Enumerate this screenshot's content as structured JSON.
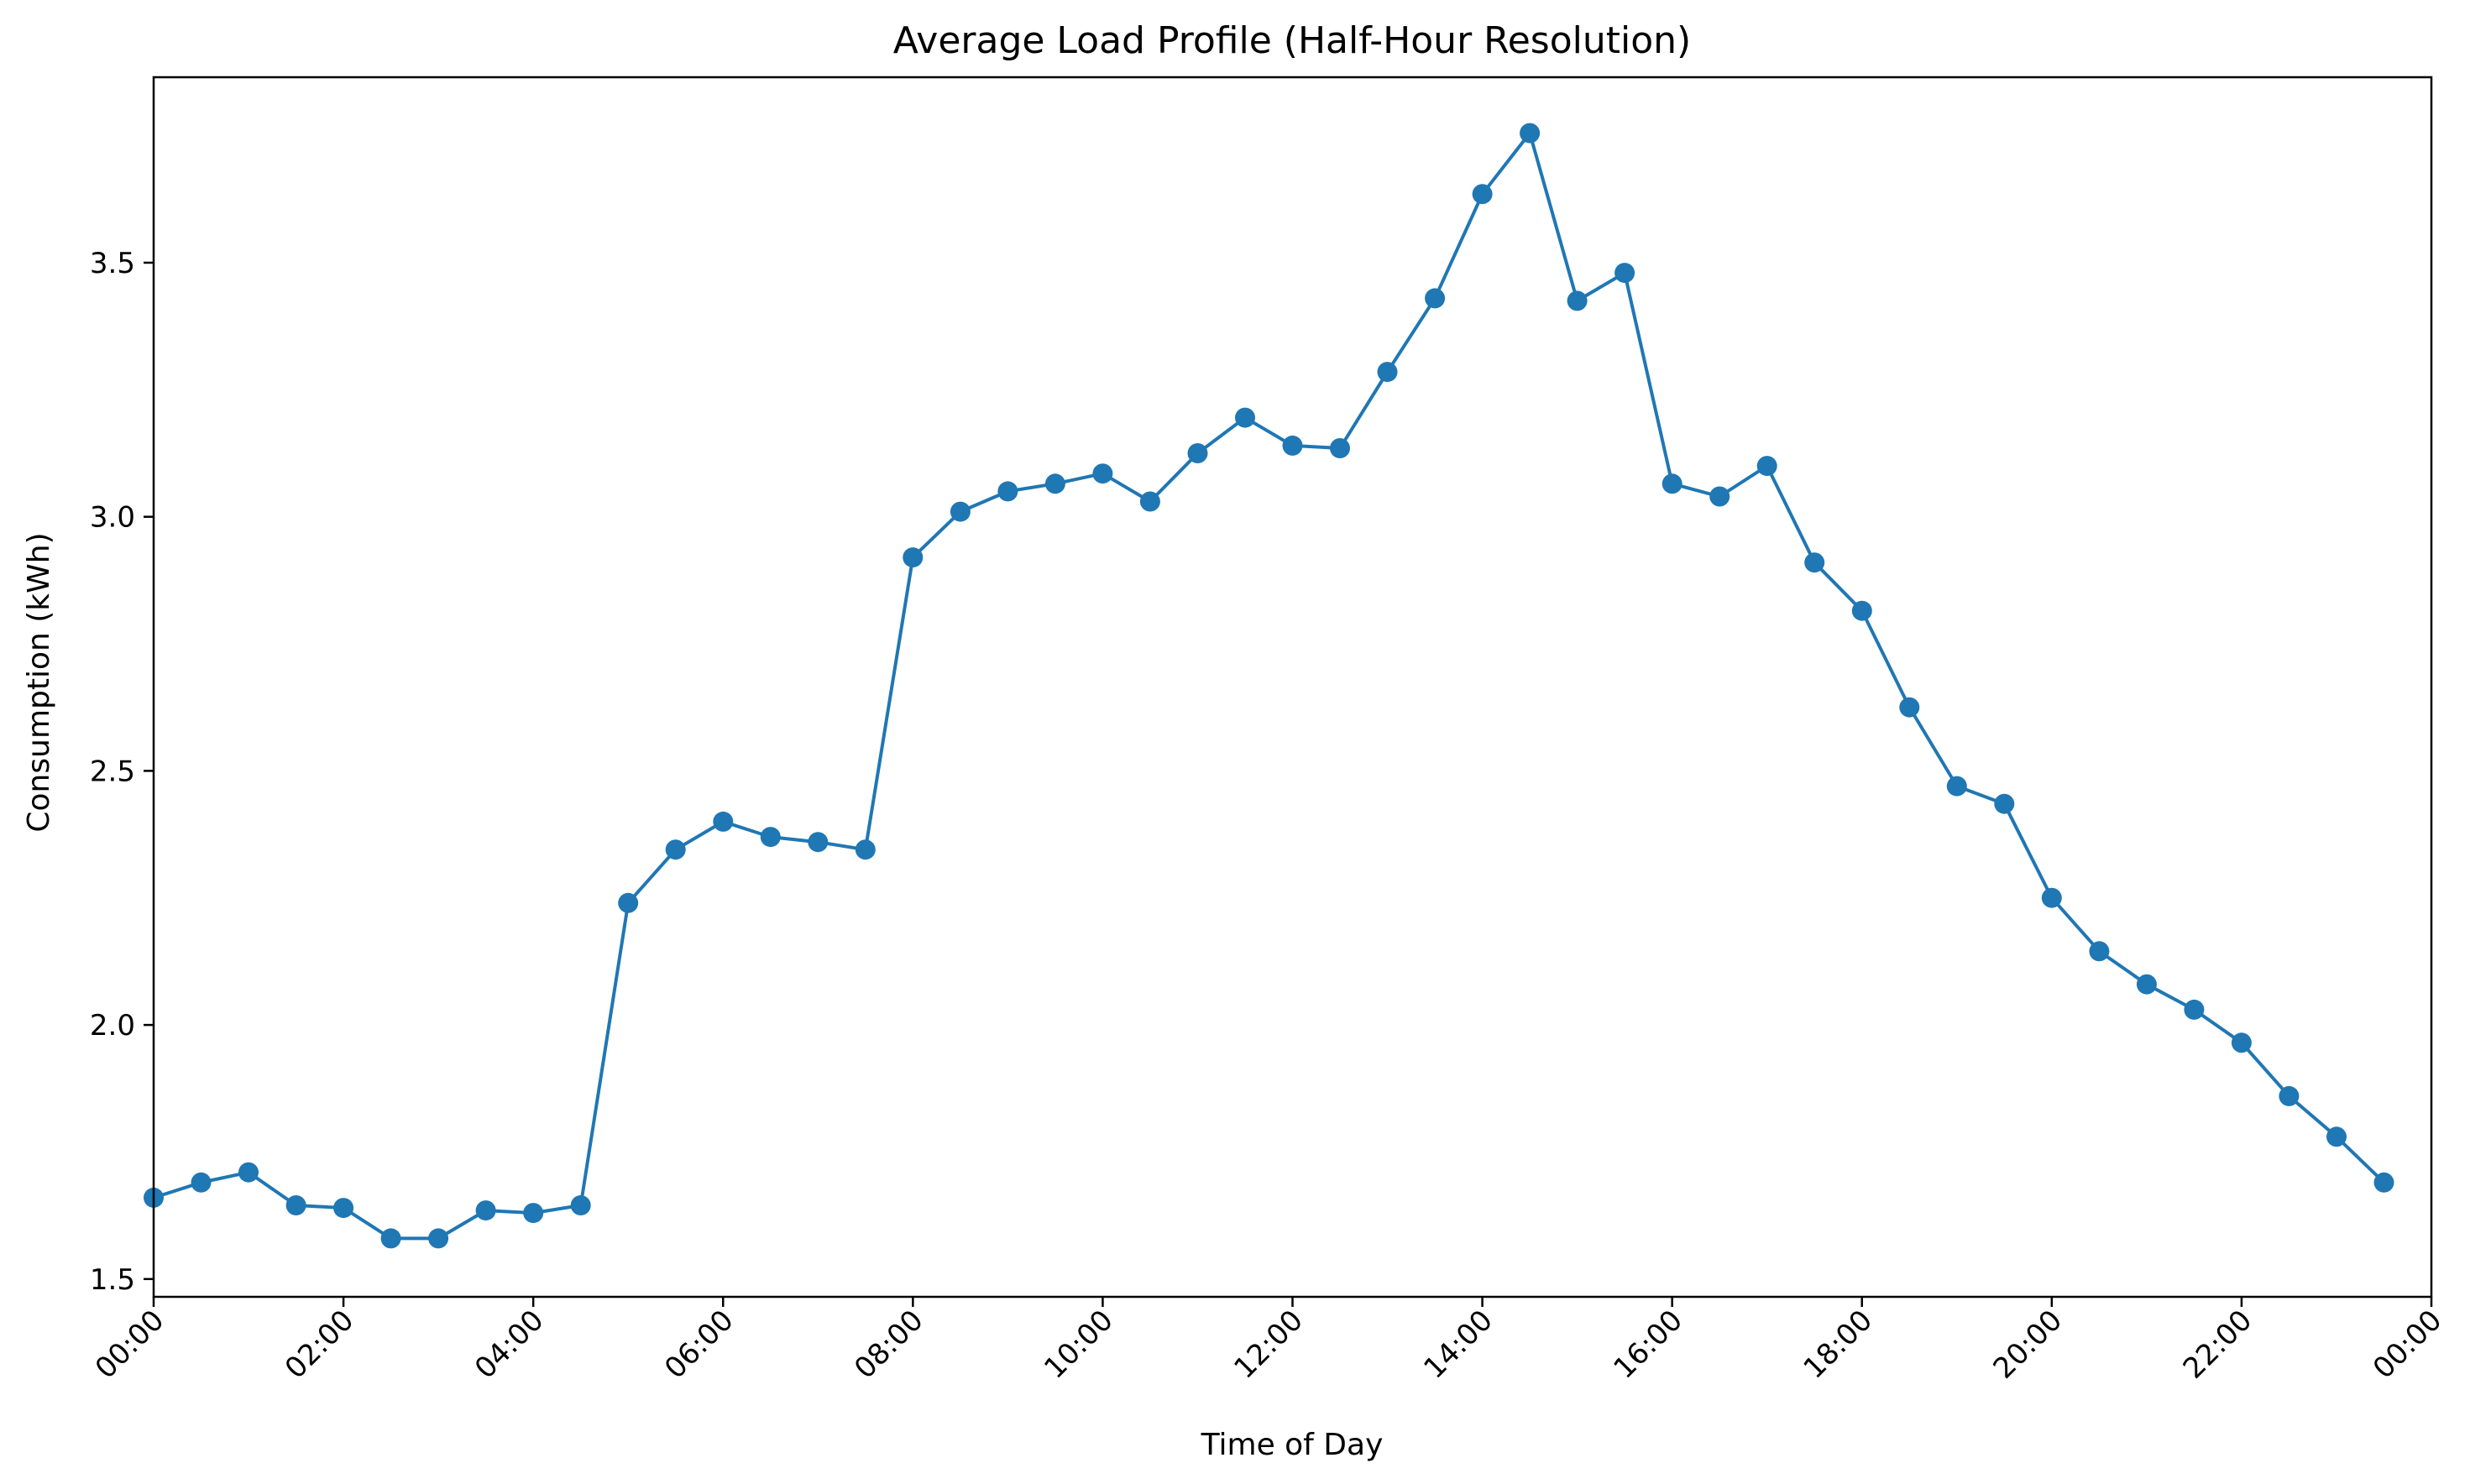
{
  "colors": {
    "series": "#1f77b4",
    "axes": "#000000",
    "background": "#ffffff"
  },
  "chart_data": {
    "type": "line",
    "title": "Average Load Profile (Half-Hour Resolution)",
    "xlabel": "Time of Day",
    "ylabel": "Consumption (kWh)",
    "grid": false,
    "marker": "circle",
    "x": [
      "00:00",
      "00:30",
      "01:00",
      "01:30",
      "02:00",
      "02:30",
      "03:00",
      "03:30",
      "04:00",
      "04:30",
      "05:00",
      "05:30",
      "06:00",
      "06:30",
      "07:00",
      "07:30",
      "08:00",
      "08:30",
      "09:00",
      "09:30",
      "10:00",
      "10:30",
      "11:00",
      "11:30",
      "12:00",
      "12:30",
      "13:00",
      "13:30",
      "14:00",
      "14:30",
      "15:00",
      "15:30",
      "16:00",
      "16:30",
      "17:00",
      "17:30",
      "18:00",
      "18:30",
      "19:00",
      "19:30",
      "20:00",
      "20:30",
      "21:00",
      "21:30",
      "22:00",
      "22:30",
      "23:00",
      "23:30"
    ],
    "values": [
      1.66,
      1.69,
      1.71,
      1.645,
      1.64,
      1.58,
      1.58,
      1.635,
      1.63,
      1.645,
      2.24,
      2.345,
      2.4,
      2.37,
      2.36,
      2.345,
      2.92,
      3.01,
      3.05,
      3.065,
      3.085,
      3.03,
      3.125,
      3.195,
      3.14,
      3.135,
      3.285,
      3.43,
      3.635,
      3.755,
      3.425,
      3.48,
      3.065,
      3.04,
      3.1,
      2.91,
      2.815,
      2.625,
      2.47,
      2.435,
      2.25,
      2.145,
      2.08,
      2.03,
      1.965,
      1.86,
      1.78,
      1.69
    ],
    "xlim": [
      "00:00",
      "00:00"
    ],
    "xticks": [
      "00:00",
      "02:00",
      "04:00",
      "06:00",
      "08:00",
      "10:00",
      "12:00",
      "14:00",
      "16:00",
      "18:00",
      "20:00",
      "22:00",
      "00:00"
    ],
    "ylim": [
      1.465,
      3.865
    ],
    "yticks": [
      "1.5",
      "2.0",
      "2.5",
      "3.0",
      "3.5"
    ]
  }
}
